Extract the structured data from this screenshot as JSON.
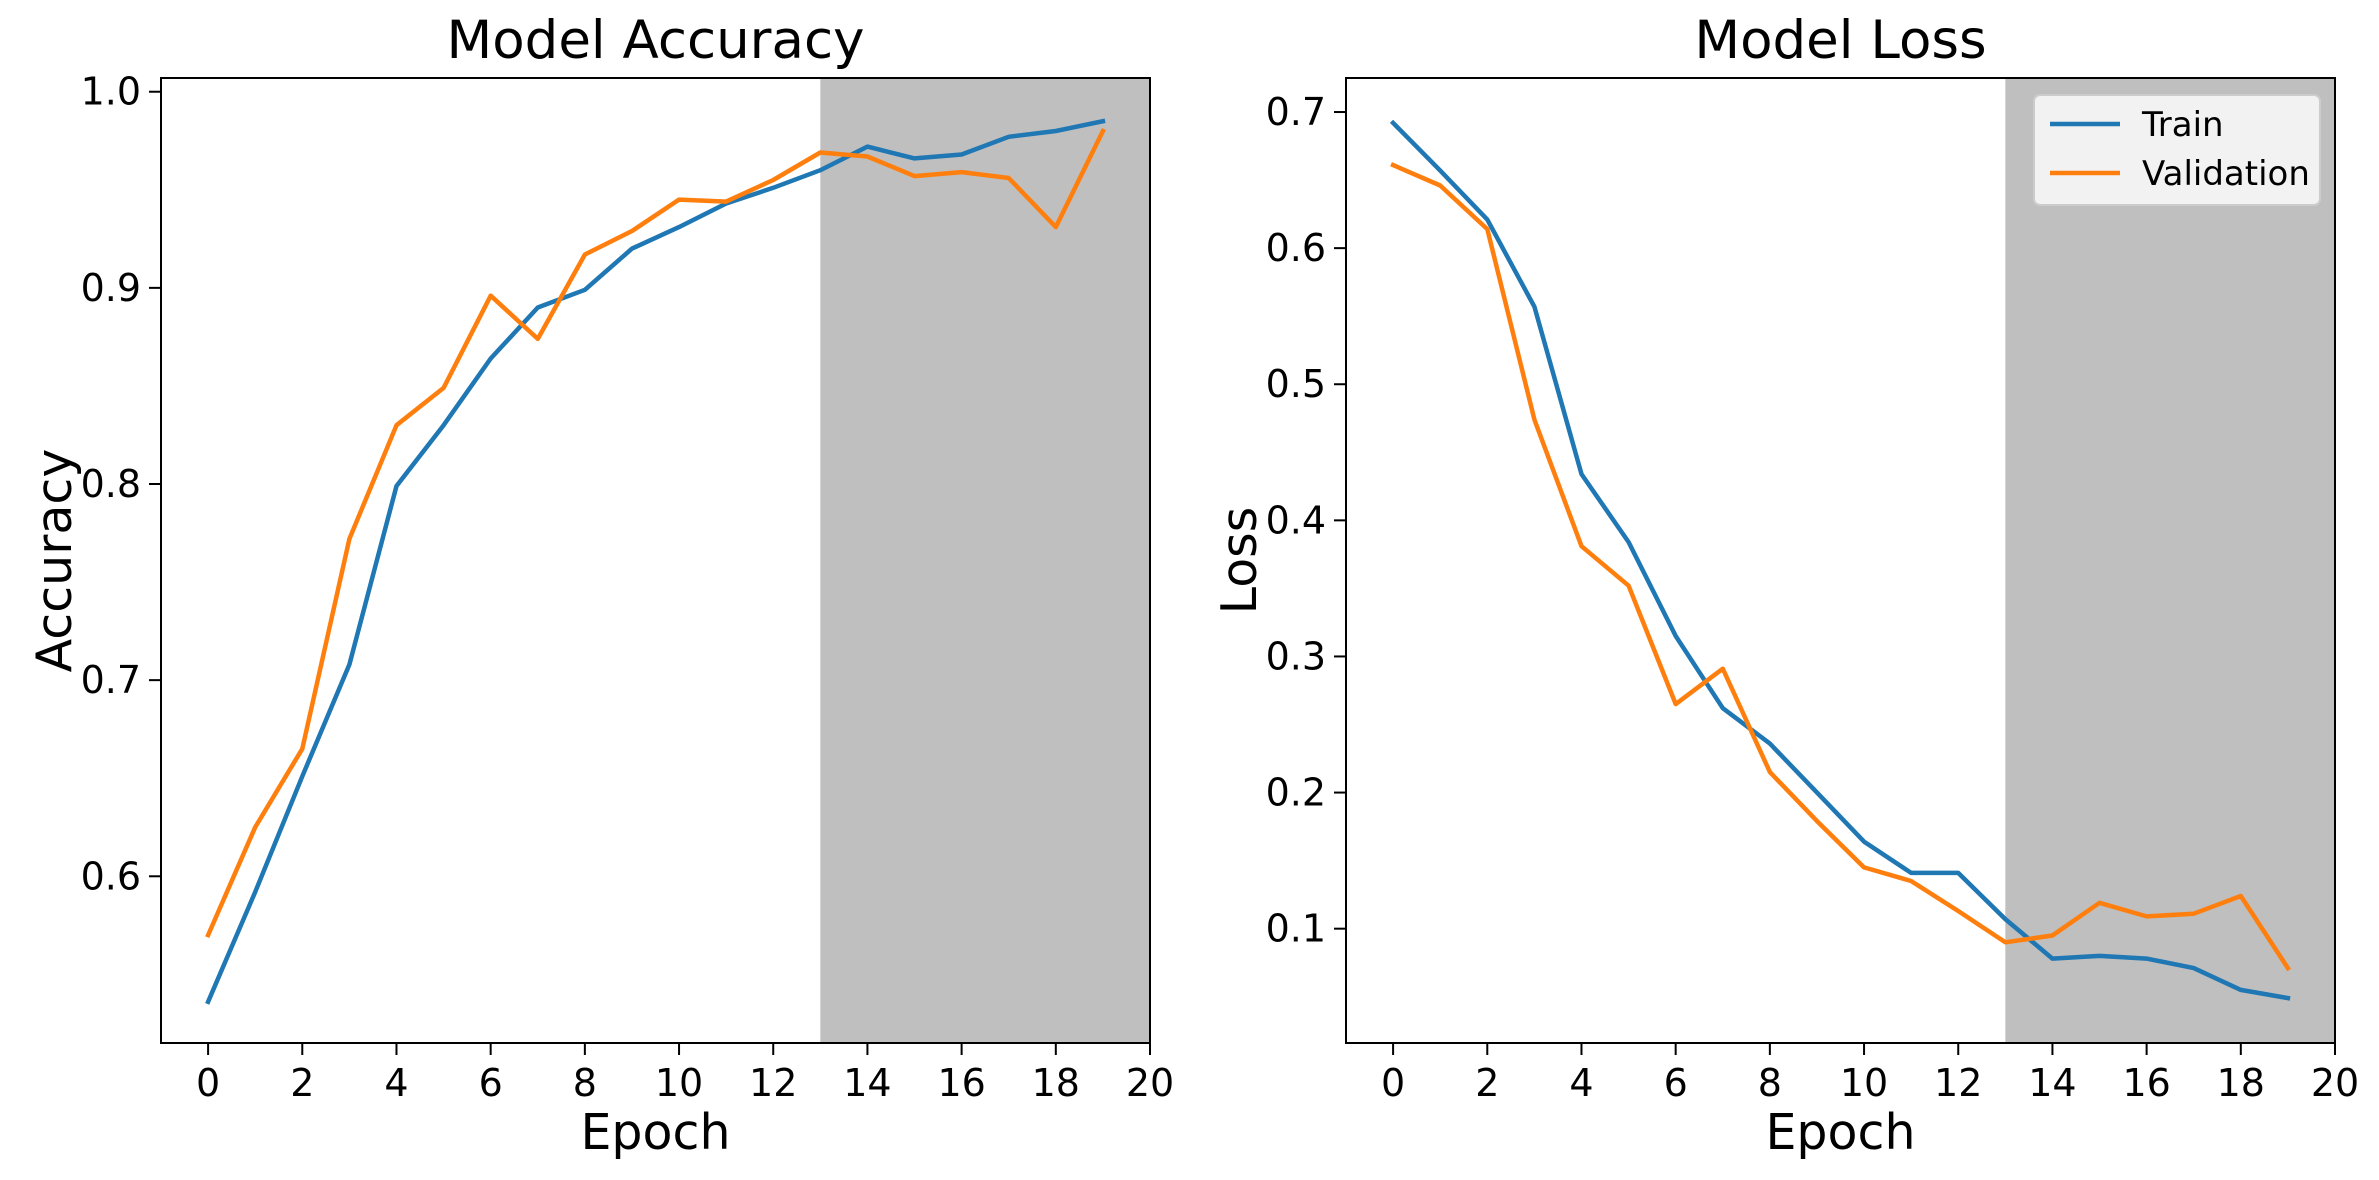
{
  "chart_data": [
    {
      "type": "line",
      "title": "Model Accuracy",
      "xlabel": "Epoch",
      "ylabel": "Accuracy",
      "xlim": [
        -1,
        20
      ],
      "ylim": [
        0.515,
        1.007
      ],
      "xticks": [
        0,
        2,
        4,
        6,
        8,
        10,
        12,
        14,
        16,
        18,
        20
      ],
      "yticks": [
        0.6,
        0.7,
        0.8,
        0.9,
        1.0
      ],
      "ytick_labels": [
        "0.6",
        "0.7",
        "0.8",
        "0.9",
        "1.0"
      ],
      "shaded_region": [
        13,
        20
      ],
      "legend": false,
      "x": [
        0,
        1,
        2,
        3,
        4,
        5,
        6,
        7,
        8,
        9,
        10,
        11,
        12,
        13,
        14,
        15,
        16,
        17,
        18,
        19
      ],
      "series": [
        {
          "name": "Train",
          "color": "#1f77b4",
          "values": [
            0.536,
            0.592,
            0.651,
            0.708,
            0.799,
            0.83,
            0.864,
            0.89,
            0.899,
            0.92,
            0.931,
            0.943,
            0.951,
            0.96,
            0.972,
            0.966,
            0.968,
            0.977,
            0.98,
            0.985
          ]
        },
        {
          "name": "Validation",
          "color": "#ff7f0e",
          "values": [
            0.57,
            0.625,
            0.665,
            0.772,
            0.83,
            0.849,
            0.896,
            0.874,
            0.917,
            0.929,
            0.945,
            0.944,
            0.955,
            0.969,
            0.967,
            0.957,
            0.959,
            0.956,
            0.931,
            0.98
          ]
        }
      ]
    },
    {
      "type": "line",
      "title": "Model Loss",
      "xlabel": "Epoch",
      "ylabel": "Loss",
      "xlim": [
        -1,
        20
      ],
      "ylim": [
        0.016,
        0.725
      ],
      "xticks": [
        0,
        2,
        4,
        6,
        8,
        10,
        12,
        14,
        16,
        18,
        20
      ],
      "yticks": [
        0.1,
        0.2,
        0.3,
        0.4,
        0.5,
        0.6,
        0.7
      ],
      "ytick_labels": [
        "0.1",
        "0.2",
        "0.3",
        "0.4",
        "0.5",
        "0.6",
        "0.7"
      ],
      "shaded_region": [
        13,
        20
      ],
      "legend": true,
      "legend_position": "top-right",
      "x": [
        0,
        1,
        2,
        3,
        4,
        5,
        6,
        7,
        8,
        9,
        10,
        11,
        12,
        13,
        14,
        15,
        16,
        17,
        18,
        19
      ],
      "series": [
        {
          "name": "Train",
          "color": "#1f77b4",
          "values": [
            0.692,
            0.657,
            0.621,
            0.557,
            0.434,
            0.384,
            0.315,
            0.262,
            0.236,
            0.2,
            0.164,
            0.141,
            0.141,
            0.107,
            0.078,
            0.08,
            0.078,
            0.071,
            0.055,
            0.049
          ]
        },
        {
          "name": "Validation",
          "color": "#ff7f0e",
          "values": [
            0.661,
            0.646,
            0.614,
            0.474,
            0.381,
            0.352,
            0.265,
            0.291,
            0.215,
            0.179,
            0.145,
            0.135,
            0.113,
            0.09,
            0.095,
            0.119,
            0.109,
            0.111,
            0.124,
            0.071
          ]
        }
      ]
    }
  ]
}
